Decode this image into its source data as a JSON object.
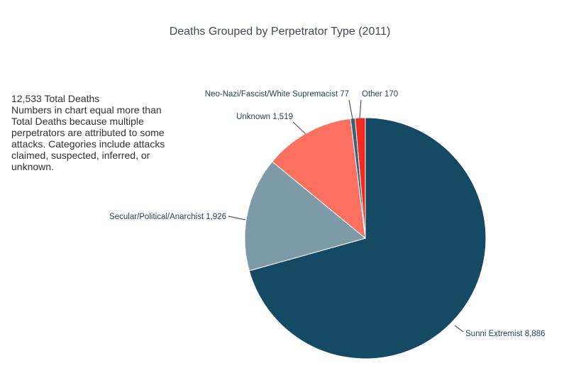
{
  "chart_data": {
    "type": "pie",
    "title": "Deaths Grouped by Perpetrator Type (2011)",
    "note": {
      "line1": "12,533 Total Deaths",
      "line2": "Numbers in chart equal more than Total Deaths because multiple perpetrators are attributed to some attacks. Categories include attacks claimed, suspected, inferred, or unknown."
    },
    "slices": [
      {
        "label": "Sunni Extremist  8,886",
        "value": 8886,
        "color": "#154a65"
      },
      {
        "label": "Secular/Political/Anarchist 1,926",
        "value": 1926,
        "color": "#7d9aa9"
      },
      {
        "label": "Unknown 1,519",
        "value": 1519,
        "color": "#fc7060"
      },
      {
        "label": "Neo-Nazi/Fascist/White Supremacist 77",
        "value": 77,
        "color": "#3d5f77"
      },
      {
        "label": "Other 170",
        "value": 170,
        "color": "#f32a1f"
      }
    ]
  }
}
